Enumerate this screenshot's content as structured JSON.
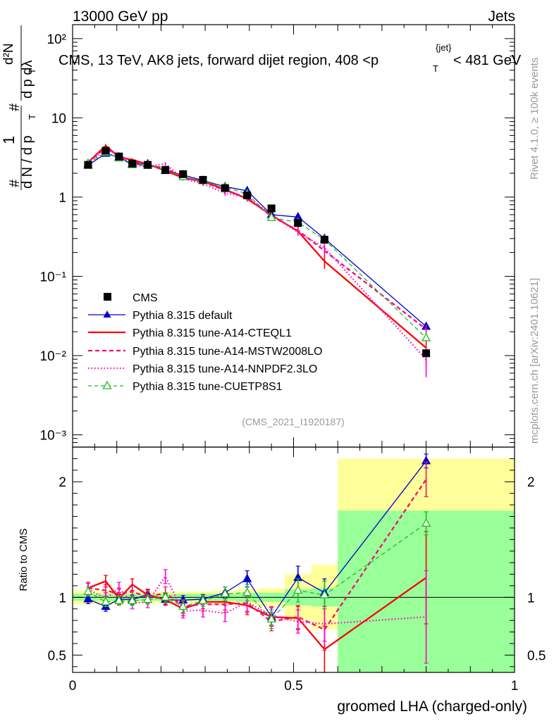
{
  "header": {
    "left": "13000 GeV pp",
    "right": "Jets",
    "side_top": "Rivet 4.1.0, ≥ 100k events",
    "side_bottom": "mcplots.cern.ch [arXiv:2401.10621]"
  },
  "chart_data": {
    "type": "line",
    "title": "CMS, 13 TeV, AK8 jets, forward dijet region, 408 < p_T^{jet} < 481 GeV",
    "title_parts": {
      "main": "CMS, 13 TeV, AK8 jets, forward dijet region, 408 <p",
      "sub": "T",
      "sup": "{jet}",
      "end": "< 481 GeV"
    },
    "analysis_tag": "(CMS_2021_I1920187)",
    "xlabel": "groomed LHA (charged-only)",
    "xlim": [
      0,
      1
    ],
    "x_ticks": [
      "0",
      "0.5",
      "1"
    ],
    "top_panel": {
      "yscale": "log",
      "ylim": [
        0.0007,
        150
      ],
      "ylabel_parts": {
        "hash": "#",
        "one": "1",
        "dN": "d N / d p",
        "T": "T",
        "d2N": "d²N",
        "dpT_dlambda": "d p  dλ",
        "T2": "T"
      },
      "y_ticks": [
        "10⁻³",
        "10⁻²",
        "10⁻¹",
        "1",
        "10",
        "10²"
      ]
    },
    "ratio_panel": {
      "ylim": [
        0.35,
        2.3
      ],
      "ylabel": "Ratio to CMS",
      "y_ticks": [
        "0.5",
        "1",
        "2"
      ]
    },
    "x": [
      0.035,
      0.075,
      0.105,
      0.135,
      0.17,
      0.21,
      0.25,
      0.295,
      0.345,
      0.395,
      0.45,
      0.51,
      0.57,
      0.8
    ],
    "cms": {
      "name": "CMS",
      "values": [
        2.55,
        3.85,
        3.25,
        2.65,
        2.55,
        2.2,
        1.95,
        1.65,
        1.3,
        1.05,
        0.72,
        0.47,
        0.29,
        0.0107
      ],
      "stat_band": [
        0.03,
        0.03,
        0.03,
        0.03,
        0.03,
        0.03,
        0.03,
        0.03,
        0.03,
        0.04,
        0.04,
        0.07,
        0.08,
        0.75
      ],
      "total_band": [
        0.06,
        0.06,
        0.05,
        0.05,
        0.05,
        0.05,
        0.05,
        0.05,
        0.06,
        0.07,
        0.08,
        0.2,
        0.28,
        1.2
      ]
    },
    "series": [
      {
        "name": "Pythia 8.315 default",
        "color": "#0000cc",
        "style": "solid",
        "marker": "triangle-filled",
        "values": [
          2.52,
          3.55,
          3.2,
          2.6,
          2.62,
          2.15,
          1.9,
          1.62,
          1.35,
          1.2,
          0.6,
          0.56,
          0.3,
          0.0233
        ],
        "ratio": [
          0.985,
          0.92,
          0.985,
          0.98,
          1.025,
          0.98,
          0.975,
          0.985,
          1.04,
          1.16,
          0.83,
          1.17,
          1.04,
          2.18
        ],
        "ratio_err": [
          0.04,
          0.04,
          0.04,
          0.04,
          0.04,
          0.04,
          0.04,
          0.04,
          0.05,
          0.07,
          0.08,
          0.1,
          0.12,
          0.06
        ]
      },
      {
        "name": "Pythia 8.315 tune-A14-CTEQL1",
        "color": "#ff0000",
        "style": "solid",
        "marker": "none",
        "values": [
          2.75,
          4.45,
          3.2,
          2.95,
          2.6,
          2.15,
          1.75,
          1.58,
          1.25,
          0.95,
          0.59,
          0.37,
          0.155,
          0.0125
        ],
        "ratio": [
          1.08,
          1.14,
          0.99,
          1.11,
          1.02,
          0.98,
          0.9,
          0.96,
          0.96,
          0.93,
          0.83,
          0.82,
          0.55,
          1.17
        ],
        "ratio_err": [
          0.05,
          0.05,
          0.05,
          0.05,
          0.05,
          0.05,
          0.06,
          0.06,
          0.07,
          0.08,
          0.08,
          0.1,
          0.2,
          0.4
        ]
      },
      {
        "name": "Pythia 8.315 tune-A14-MSTW2008LO",
        "color": "#ee1177",
        "style": "dashed",
        "marker": "none",
        "values": [
          2.75,
          4.2,
          3.35,
          2.8,
          2.55,
          2.3,
          1.8,
          1.55,
          1.22,
          0.98,
          0.57,
          0.38,
          0.21,
          0.0215
        ],
        "ratio": [
          1.08,
          1.06,
          1.03,
          1.05,
          1.0,
          1.04,
          0.92,
          0.94,
          0.94,
          0.95,
          0.79,
          0.83,
          0.72,
          2.02
        ],
        "ratio_err": [
          0.05,
          0.05,
          0.05,
          0.05,
          0.05,
          0.05,
          0.06,
          0.06,
          0.07,
          0.08,
          0.08,
          0.1,
          0.18,
          0.15
        ]
      },
      {
        "name": "Pythia 8.315 tune-A14-NNPDF2.3LO",
        "color": "#ff00cc",
        "style": "dotted",
        "marker": "none",
        "values": [
          2.72,
          3.9,
          3.5,
          2.5,
          2.45,
          2.6,
          1.72,
          1.47,
          1.12,
          1.0,
          0.6,
          0.36,
          0.23,
          0.0089
        ],
        "ratio": [
          1.07,
          0.99,
          1.08,
          0.95,
          0.96,
          1.18,
          0.88,
          0.89,
          0.86,
          0.96,
          0.84,
          0.79,
          0.77,
          0.83
        ],
        "ratio_err": [
          0.05,
          0.05,
          0.05,
          0.05,
          0.05,
          0.06,
          0.06,
          0.06,
          0.07,
          0.08,
          0.08,
          0.1,
          0.15,
          0.4
        ]
      },
      {
        "name": "Pythia 8.315 tune-CUETP8S1",
        "color": "#22bb22",
        "style": "dashed",
        "marker": "triangle-open",
        "values": [
          2.67,
          3.65,
          3.1,
          2.55,
          2.5,
          2.2,
          1.8,
          1.6,
          1.33,
          1.1,
          0.55,
          0.48,
          0.29,
          0.0167
        ],
        "ratio": [
          1.05,
          0.96,
          0.97,
          0.97,
          0.98,
          1.0,
          0.92,
          0.97,
          1.03,
          1.04,
          0.81,
          1.06,
          1.02,
          1.64
        ],
        "ratio_err": [
          0.04,
          0.04,
          0.04,
          0.04,
          0.04,
          0.04,
          0.05,
          0.05,
          0.06,
          0.07,
          0.08,
          0.1,
          0.12,
          0.1
        ]
      }
    ],
    "legend_position": "middle-left"
  }
}
